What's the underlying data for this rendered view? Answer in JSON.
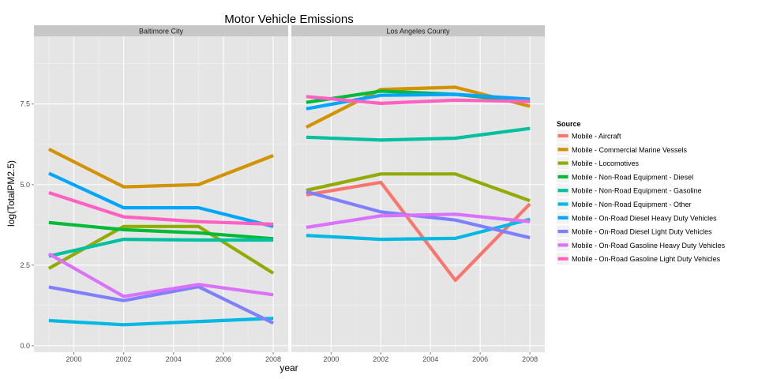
{
  "chart_data": {
    "type": "line",
    "title": "Motor Vehicle Emissions",
    "xlabel": "year",
    "ylabel": "log(TotalPM2.5)",
    "x": [
      1999,
      2002,
      2005,
      2008
    ],
    "xlim": [
      1998.4,
      2008.6
    ],
    "ylim": [
      -0.2,
      9.6
    ],
    "xticks": [
      2000,
      2002,
      2004,
      2006,
      2008
    ],
    "yticks": [
      0.0,
      2.5,
      5.0,
      7.5
    ],
    "ytick_labels": [
      "0.0",
      "2.5",
      "5.0",
      "7.5"
    ],
    "grid": true,
    "legend": {
      "title": "Source",
      "placement": "right"
    },
    "series_styles": [
      {
        "name": "Mobile - Aircraft",
        "color": "#F8766D"
      },
      {
        "name": "Mobile - Commercial Marine Vessels",
        "color": "#D39200"
      },
      {
        "name": "Mobile - Locomotives",
        "color": "#93AA00"
      },
      {
        "name": "Mobile - Non-Road Equipment - Diesel",
        "color": "#00BA38"
      },
      {
        "name": "Mobile - Non-Road Equipment - Gasoline",
        "color": "#00C19F"
      },
      {
        "name": "Mobile - Non-Road Equipment - Other",
        "color": "#00B9E3"
      },
      {
        "name": "Mobile - On-Road Diesel Heavy Duty Vehicles",
        "color": "#00A5FF"
      },
      {
        "name": "Mobile - On-Road Diesel Light Duty Vehicles",
        "color": "#8080FF"
      },
      {
        "name": "Mobile - On-Road Gasoline Heavy Duty Vehicles",
        "color": "#DB72FB"
      },
      {
        "name": "Mobile - On-Road Gasoline Light Duty Vehicles",
        "color": "#FF61C3"
      }
    ],
    "panels": [
      {
        "name": "Baltimore City",
        "series": [
          {
            "name": "Mobile - Commercial Marine Vessels",
            "values": [
              6.1,
              4.93,
              5.0,
              5.9
            ]
          },
          {
            "name": "Mobile - Locomotives",
            "values": [
              2.4,
              3.7,
              3.7,
              2.25
            ]
          },
          {
            "name": "Mobile - Non-Road Equipment - Diesel",
            "values": [
              3.82,
              3.6,
              3.5,
              3.32
            ]
          },
          {
            "name": "Mobile - Non-Road Equipment - Gasoline",
            "values": [
              2.78,
              3.3,
              3.28,
              3.28
            ]
          },
          {
            "name": "Mobile - Non-Road Equipment - Other",
            "values": [
              0.78,
              0.65,
              0.75,
              0.85
            ]
          },
          {
            "name": "Mobile - On-Road Diesel Heavy Duty Vehicles",
            "values": [
              5.35,
              4.28,
              4.28,
              3.7
            ]
          },
          {
            "name": "Mobile - On-Road Diesel Light Duty Vehicles",
            "values": [
              1.82,
              1.4,
              1.83,
              0.7
            ]
          },
          {
            "name": "Mobile - On-Road Gasoline Heavy Duty Vehicles",
            "values": [
              2.85,
              1.53,
              1.9,
              1.58
            ]
          },
          {
            "name": "Mobile - On-Road Gasoline Light Duty Vehicles",
            "values": [
              4.75,
              4.0,
              3.85,
              3.77
            ]
          }
        ]
      },
      {
        "name": "Los Angeles County",
        "series": [
          {
            "name": "Mobile - Aircraft",
            "values": [
              4.68,
              5.07,
              2.03,
              4.4
            ]
          },
          {
            "name": "Mobile - Commercial Marine Vessels",
            "values": [
              6.78,
              7.95,
              8.02,
              7.43
            ]
          },
          {
            "name": "Mobile - Locomotives",
            "values": [
              4.82,
              5.33,
              5.33,
              4.5
            ]
          },
          {
            "name": "Mobile - Non-Road Equipment - Diesel",
            "values": [
              7.55,
              7.9,
              7.8,
              7.57
            ]
          },
          {
            "name": "Mobile - Non-Road Equipment - Gasoline",
            "values": [
              6.47,
              6.38,
              6.44,
              6.74
            ]
          },
          {
            "name": "Mobile - Non-Road Equipment - Other",
            "values": [
              3.42,
              3.3,
              3.33,
              3.92
            ]
          },
          {
            "name": "Mobile - On-Road Diesel Heavy Duty Vehicles",
            "values": [
              7.35,
              7.77,
              7.8,
              7.65
            ]
          },
          {
            "name": "Mobile - On-Road Diesel Light Duty Vehicles",
            "values": [
              4.78,
              4.15,
              3.9,
              3.35
            ]
          },
          {
            "name": "Mobile - On-Road Gasoline Heavy Duty Vehicles",
            "values": [
              3.67,
              4.03,
              4.08,
              3.85
            ]
          },
          {
            "name": "Mobile - On-Road Gasoline Light Duty Vehicles",
            "values": [
              7.73,
              7.52,
              7.62,
              7.58
            ]
          }
        ]
      }
    ]
  }
}
